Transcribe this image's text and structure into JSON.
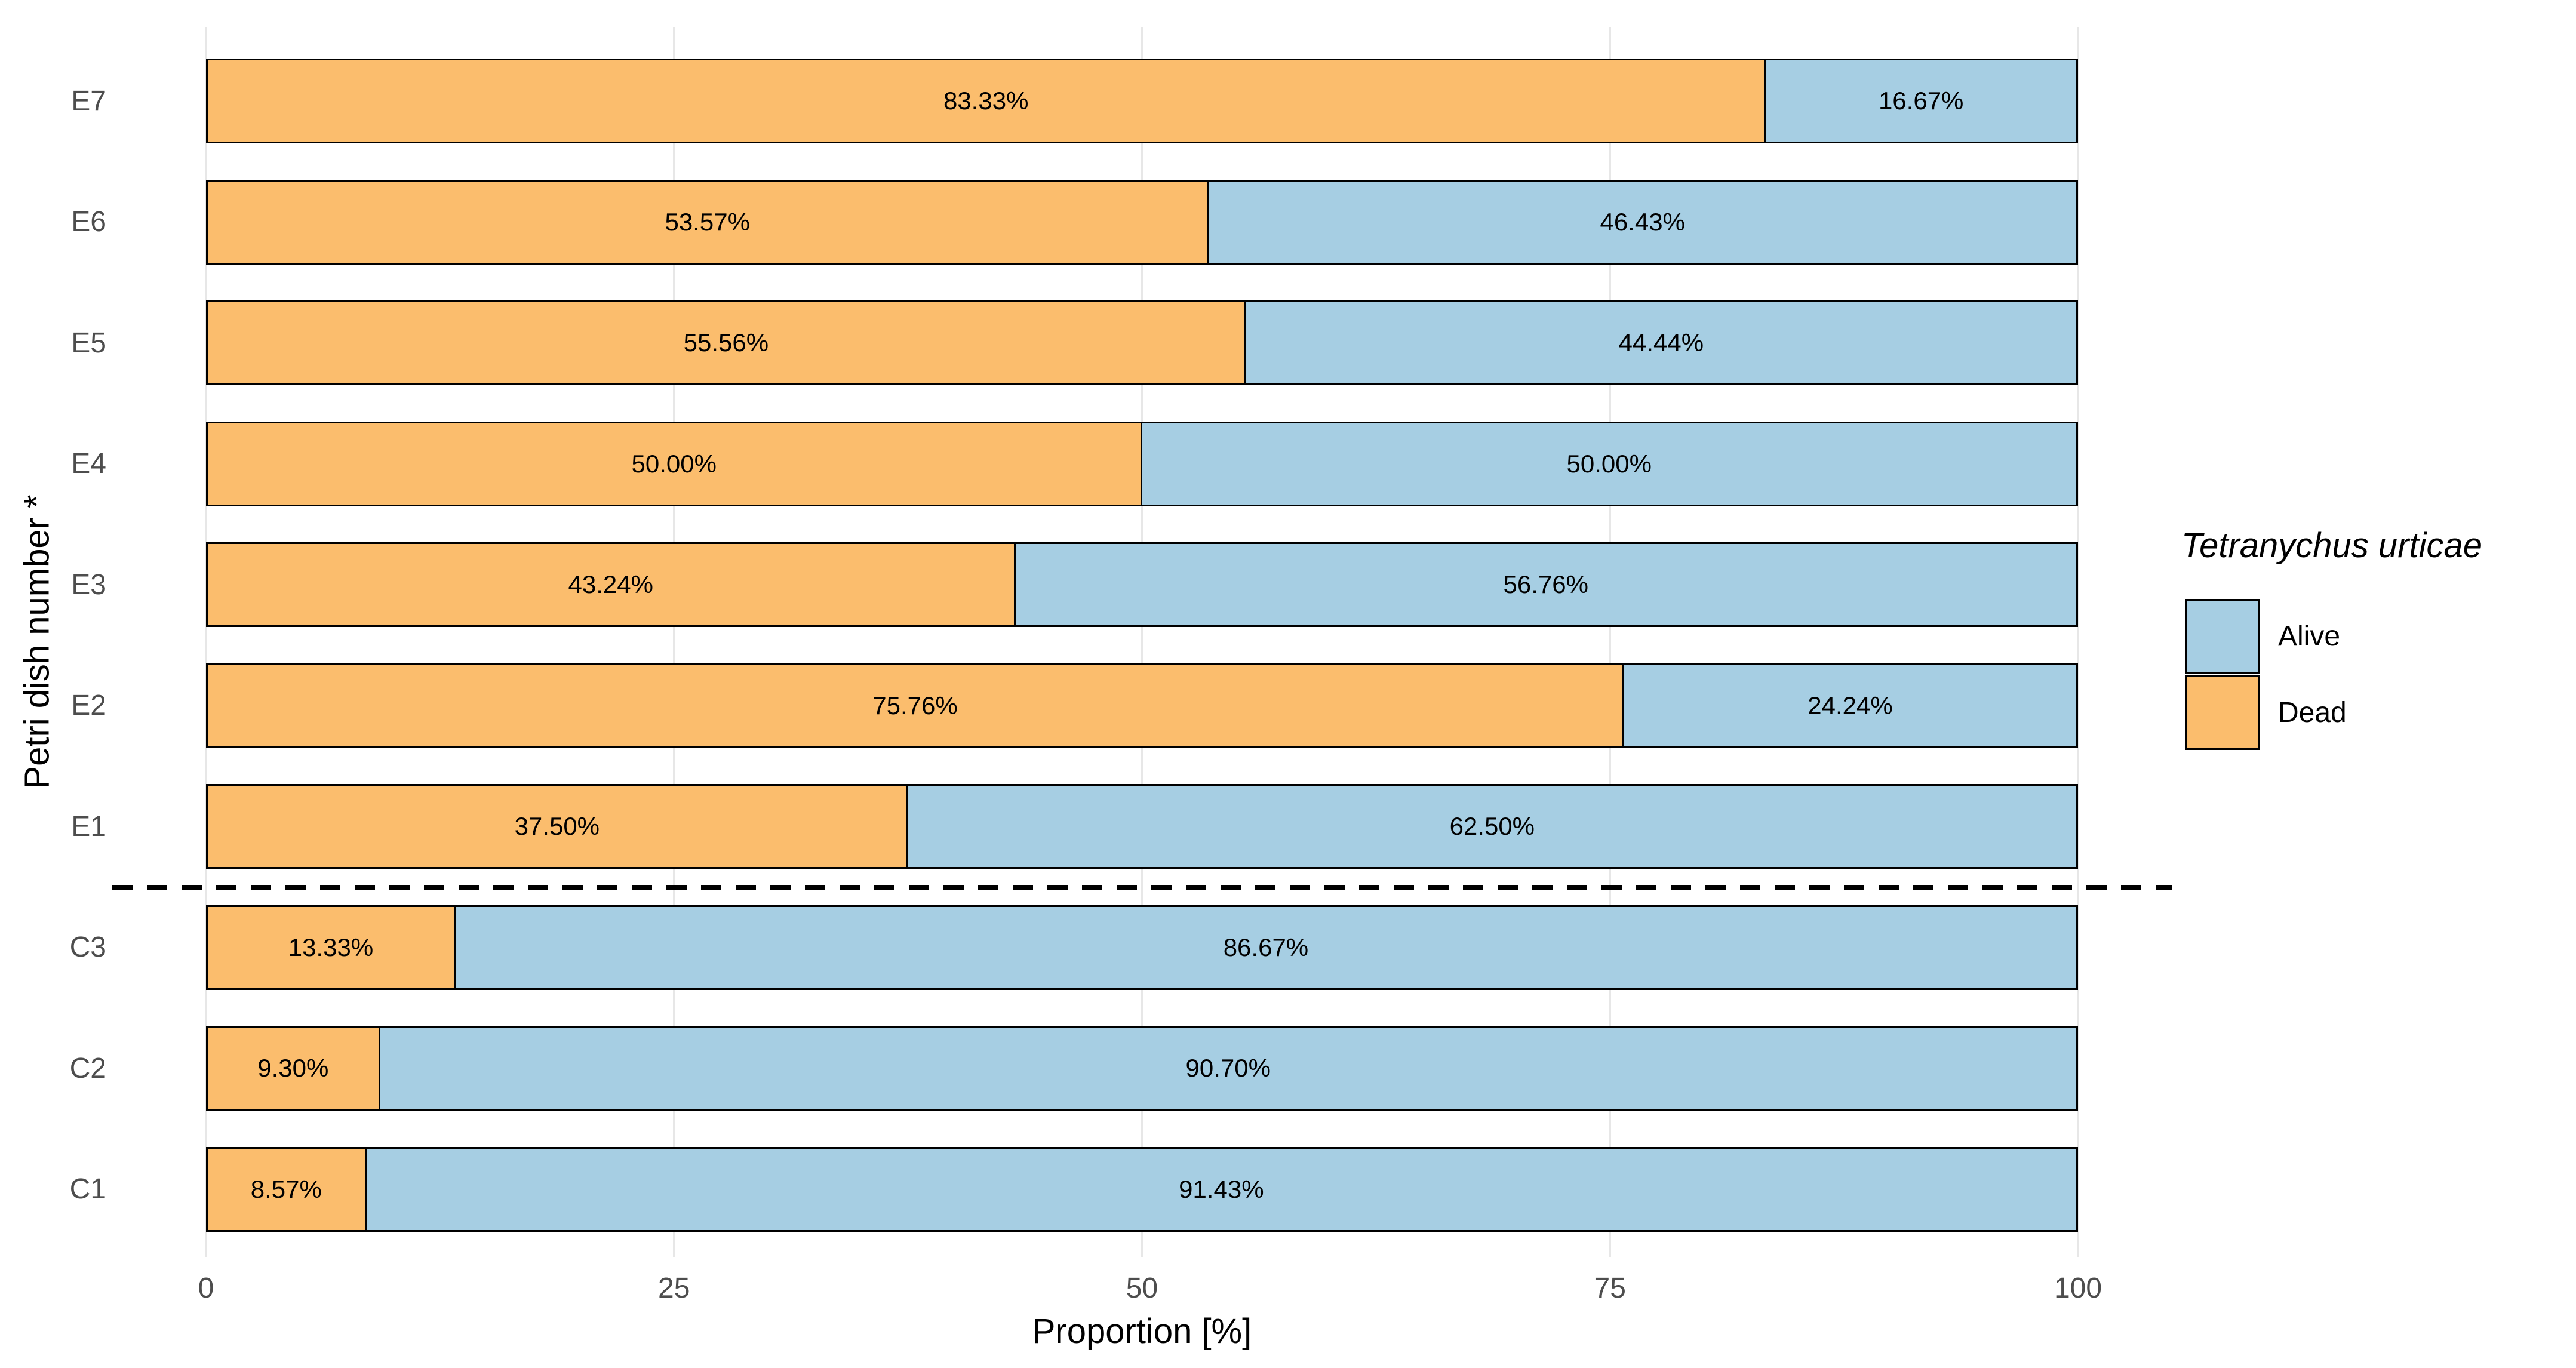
{
  "chart_data": {
    "type": "bar",
    "orientation": "horizontal",
    "stacked": true,
    "title": "",
    "xlabel": "Proportion [%]",
    "ylabel": "Petri dish number *",
    "xlim": [
      0,
      100
    ],
    "x_ticks": [
      {
        "value": 0,
        "label": "0"
      },
      {
        "value": 25,
        "label": "25"
      },
      {
        "value": 50,
        "label": "50"
      },
      {
        "value": 75,
        "label": "75"
      },
      {
        "value": 100,
        "label": "100"
      }
    ],
    "grid": "major-vertical-only",
    "categories": [
      "E7",
      "E6",
      "E5",
      "E4",
      "E3",
      "E2",
      "E1",
      "C3",
      "C2",
      "C1"
    ],
    "series": [
      {
        "name": "Dead",
        "color": "#FBBD6D",
        "values": [
          83.33,
          53.57,
          55.56,
          50.0,
          43.24,
          75.76,
          37.5,
          13.33,
          9.3,
          8.57
        ]
      },
      {
        "name": "Alive",
        "color": "#A6CEE3",
        "values": [
          16.67,
          46.43,
          44.44,
          50.0,
          56.76,
          24.24,
          62.5,
          86.67,
          90.7,
          91.43
        ]
      }
    ],
    "rows": [
      {
        "category": "E7",
        "dead": 83.33,
        "alive": 16.67,
        "dead_label": "83.33%",
        "alive_label": "16.67%"
      },
      {
        "category": "E6",
        "dead": 53.57,
        "alive": 46.43,
        "dead_label": "53.57%",
        "alive_label": "46.43%"
      },
      {
        "category": "E5",
        "dead": 55.56,
        "alive": 44.44,
        "dead_label": "55.56%",
        "alive_label": "44.44%"
      },
      {
        "category": "E4",
        "dead": 50.0,
        "alive": 50.0,
        "dead_label": "50.00%",
        "alive_label": "50.00%"
      },
      {
        "category": "E3",
        "dead": 43.24,
        "alive": 56.76,
        "dead_label": "43.24%",
        "alive_label": "56.76%"
      },
      {
        "category": "E2",
        "dead": 75.76,
        "alive": 24.24,
        "dead_label": "75.76%",
        "alive_label": "24.24%"
      },
      {
        "category": "E1",
        "dead": 37.5,
        "alive": 62.5,
        "dead_label": "37.50%",
        "alive_label": "62.50%"
      },
      {
        "category": "C3",
        "dead": 13.33,
        "alive": 86.67,
        "dead_label": "13.33%",
        "alive_label": "86.67%"
      },
      {
        "category": "C2",
        "dead": 9.3,
        "alive": 90.7,
        "dead_label": "9.30%",
        "alive_label": "90.70%"
      },
      {
        "category": "C1",
        "dead": 8.57,
        "alive": 91.43,
        "dead_label": "8.57%",
        "alive_label": "91.43%"
      }
    ],
    "separator": {
      "after_row_index": 6,
      "style": "dashed",
      "color": "#000000"
    },
    "legend": {
      "title": "Tetranychus urticae",
      "position": "right",
      "entries": [
        {
          "label": "Alive",
          "color": "#A6CEE3"
        },
        {
          "label": "Dead",
          "color": "#FBBD6D"
        }
      ]
    },
    "colors": {
      "bar_border": "#000000",
      "axis_text": "#4D4D4D",
      "gridline": "#E7E7E7",
      "bar_label_text": "#000000",
      "background": "#FFFFFF"
    }
  }
}
